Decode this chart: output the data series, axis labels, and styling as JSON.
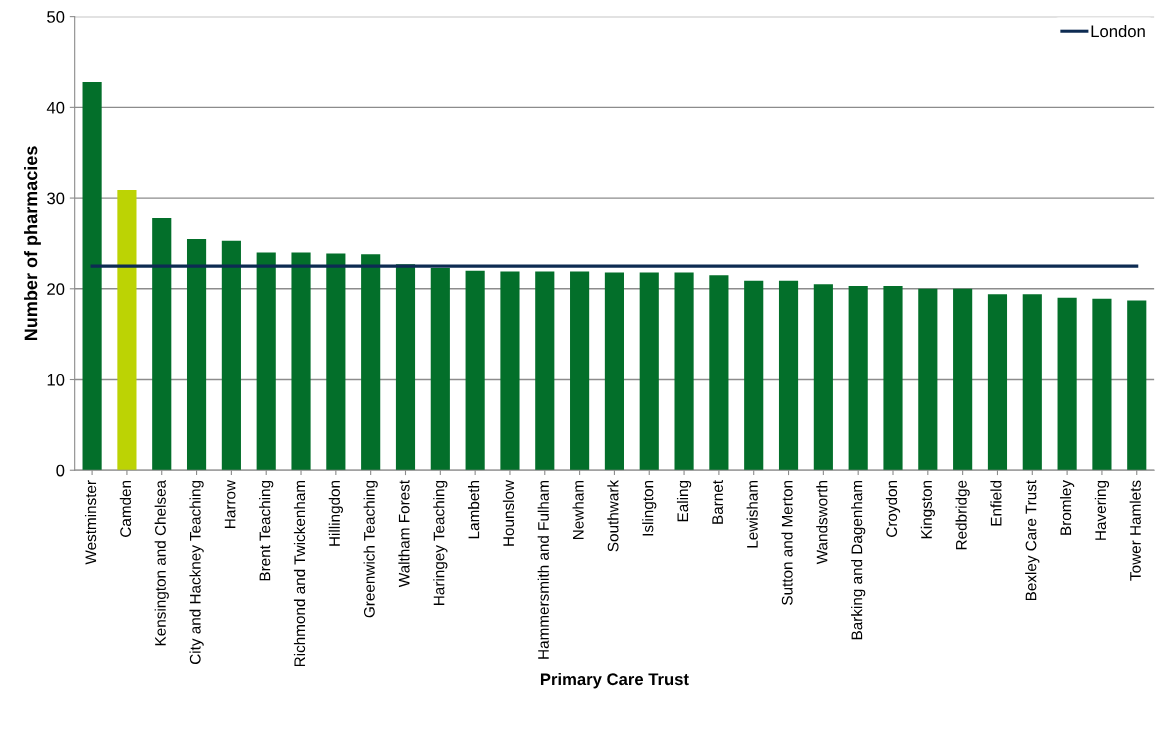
{
  "chart_data": {
    "type": "bar",
    "xlabel": "Primary Care Trust",
    "ylabel": "Number of pharmacies",
    "categories": [
      "Westminster",
      "Camden",
      "Kensington and Chelsea",
      "City and Hackney Teaching",
      "Harrow",
      "Brent Teaching",
      "Richmond and Twickenham",
      "Hillingdon",
      "Greenwich Teaching",
      "Waltham Forest",
      "Haringey Teaching",
      "Lambeth",
      "Hounslow",
      "Hammersmith and Fulham",
      "Newham",
      "Southwark",
      "Islington",
      "Ealing",
      "Barnet",
      "Lewisham",
      "Sutton and Merton",
      "Wandsworth",
      "Barking and Dagenham",
      "Croydon",
      "Kingston",
      "Redbridge",
      "Enfield",
      "Bexley Care Trust",
      "Bromley",
      "Havering",
      "Tower Hamlets"
    ],
    "series": [
      {
        "values": [
          42.8,
          30.9,
          27.8,
          25.5,
          25.3,
          24.0,
          24.0,
          23.9,
          23.8,
          22.7,
          22.3,
          22.0,
          21.9,
          21.9,
          21.9,
          21.8,
          21.8,
          21.8,
          21.5,
          20.9,
          20.9,
          20.5,
          20.3,
          20.3,
          20.0,
          20.0,
          19.4,
          19.4,
          19.0,
          18.9,
          18.7
        ],
        "colors": [
          "#036f2a",
          "#bcd304",
          "#036f2a",
          "#036f2a",
          "#036f2a",
          "#036f2a",
          "#036f2a",
          "#036f2a",
          "#036f2a",
          "#036f2a",
          "#036f2a",
          "#036f2a",
          "#036f2a",
          "#036f2a",
          "#036f2a",
          "#036f2a",
          "#036f2a",
          "#036f2a",
          "#036f2a",
          "#036f2a",
          "#036f2a",
          "#036f2a",
          "#036f2a",
          "#036f2a",
          "#036f2a",
          "#036f2a",
          "#036f2a",
          "#036f2a",
          "#036f2a",
          "#036f2a",
          "#036f2a"
        ]
      },
      {
        "type": "line",
        "name": "London",
        "color": "#0d2b52",
        "values": [
          22.5,
          22.5,
          22.5,
          22.5,
          22.5,
          22.5,
          22.5,
          22.5,
          22.5,
          22.5,
          22.5,
          22.5,
          22.5,
          22.5,
          22.5,
          22.5,
          22.5,
          22.5,
          22.5,
          22.5,
          22.5,
          22.5,
          22.5,
          22.5,
          22.5,
          22.5,
          22.5,
          22.5,
          22.5,
          22.5,
          22.5
        ]
      }
    ],
    "ylim": [
      0,
      50
    ],
    "yticks": [
      0,
      10,
      20,
      30,
      40,
      50
    ],
    "grid": "y",
    "legend": "top right"
  }
}
